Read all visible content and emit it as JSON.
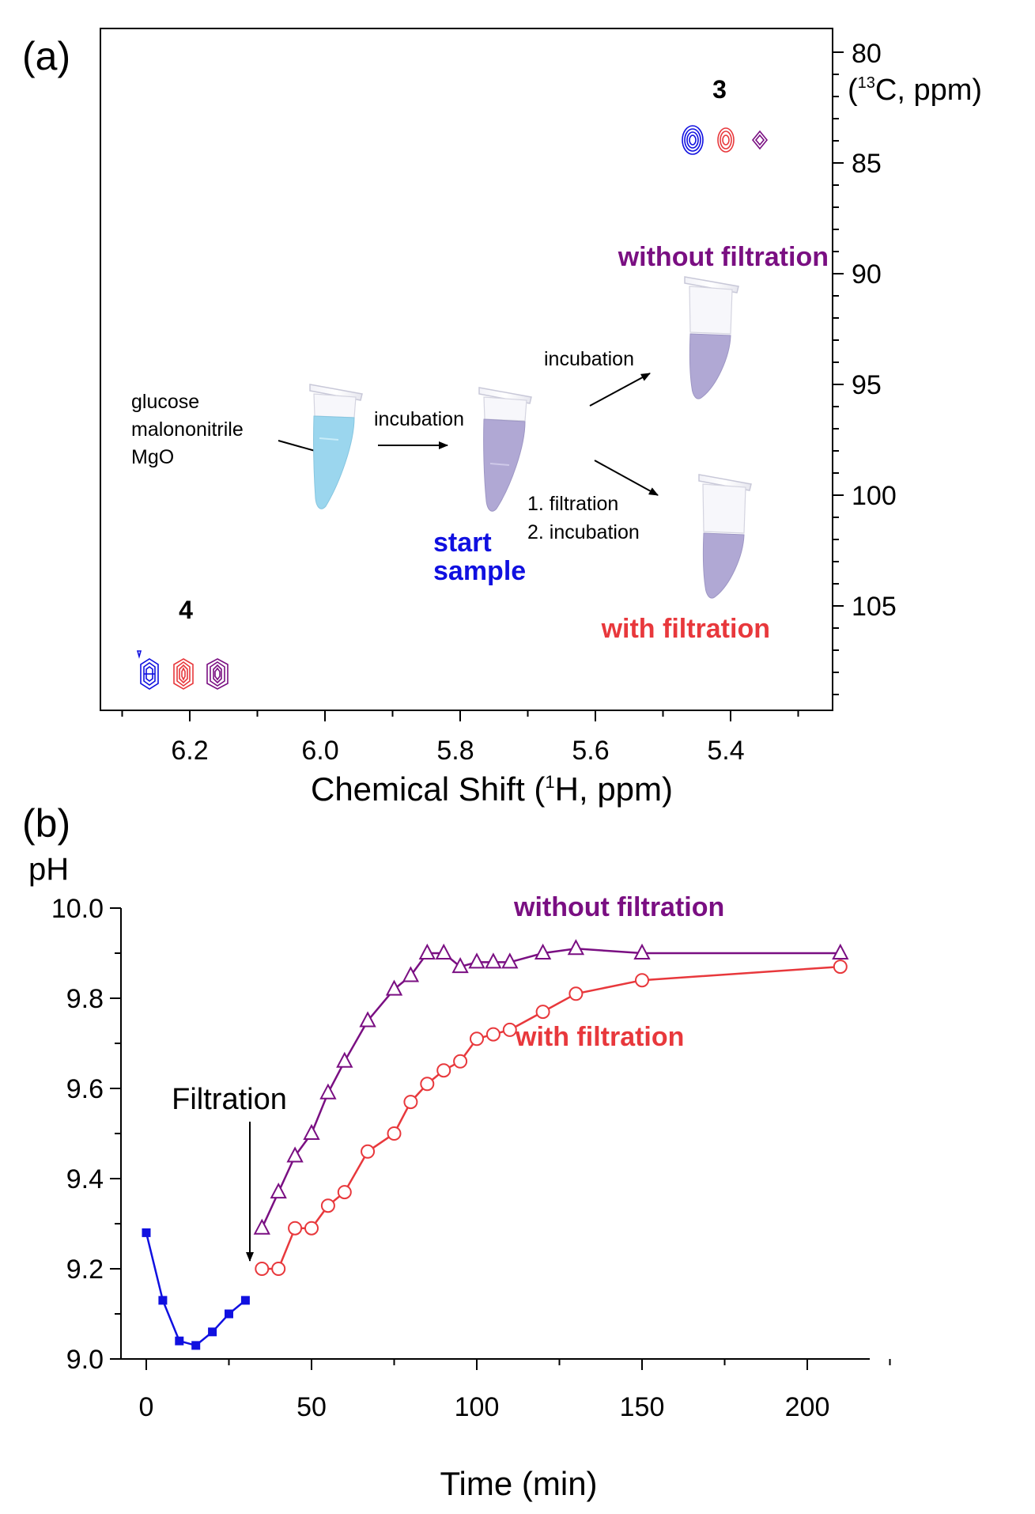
{
  "panel_a": {
    "label": "(a)",
    "xaxis": {
      "title_pre": "Chemical Shift (",
      "title_sup": "1",
      "title_post": "H, ppm)",
      "ticks": [
        "6.2",
        "6.0",
        "5.8",
        "5.6",
        "5.4"
      ]
    },
    "yaxis": {
      "title_pre": "(",
      "title_sup": "13",
      "title_post": "C, ppm)",
      "ticks": [
        "80",
        "85",
        "90",
        "95",
        "100",
        "105"
      ]
    },
    "peak_labels": {
      "p3": "3",
      "p4": "4"
    },
    "ingredients": [
      "glucose",
      "malononitrile",
      "MgO"
    ],
    "arrow_labels": {
      "incubation_1": "incubation",
      "incubation_2": "incubation",
      "step1": "1. filtration",
      "step2": "2. incubation"
    },
    "sample_labels": {
      "start_1": "start",
      "start_2": "sample",
      "without": "without filtration",
      "with": "with filtration"
    },
    "colors": {
      "start": "#1010e0",
      "with": "#e8383c",
      "without": "#7a0f82",
      "tube_blue": "#9bd6ee",
      "tube_purple": "#b0a8d4"
    }
  },
  "panel_b": {
    "label": "(b)",
    "annotation": "Filtration",
    "chart_data": {
      "type": "line",
      "title": "",
      "xlabel": "Time (min)",
      "ylabel": "pH",
      "xlim": [
        -8,
        228
      ],
      "ylim": [
        9.0,
        10.0
      ],
      "xticks": [
        "0",
        "50",
        "100",
        "150",
        "200"
      ],
      "yticks": [
        "9.0",
        "9.2",
        "9.4",
        "9.6",
        "9.8",
        "10.0"
      ],
      "series": [
        {
          "name": "start sample",
          "marker": "square",
          "color": "#1010e0",
          "x": [
            0,
            5,
            10,
            15,
            20,
            25,
            30
          ],
          "y": [
            9.28,
            9.13,
            9.04,
            9.03,
            9.06,
            9.1,
            9.13
          ]
        },
        {
          "name": "without filtration",
          "marker": "triangle",
          "color": "#7a0f82",
          "x": [
            35,
            40,
            45,
            50,
            55,
            60,
            67,
            75,
            80,
            85,
            90,
            95,
            100,
            105,
            110,
            120,
            130,
            150,
            210
          ],
          "y": [
            9.29,
            9.37,
            9.45,
            9.5,
            9.59,
            9.66,
            9.75,
            9.82,
            9.85,
            9.9,
            9.9,
            9.87,
            9.88,
            9.88,
            9.88,
            9.9,
            9.91,
            9.9,
            9.9
          ]
        },
        {
          "name": "with filtration",
          "marker": "circle",
          "color": "#e8383c",
          "x": [
            35,
            40,
            45,
            50,
            55,
            60,
            67,
            75,
            80,
            85,
            90,
            95,
            100,
            105,
            110,
            120,
            130,
            150,
            210
          ],
          "y": [
            9.2,
            9.2,
            9.29,
            9.29,
            9.34,
            9.37,
            9.46,
            9.5,
            9.57,
            9.61,
            9.64,
            9.66,
            9.71,
            9.72,
            9.73,
            9.77,
            9.81,
            9.84,
            9.87
          ]
        }
      ],
      "annotations": [
        "without filtration",
        "with filtration",
        "Filtration"
      ]
    }
  }
}
